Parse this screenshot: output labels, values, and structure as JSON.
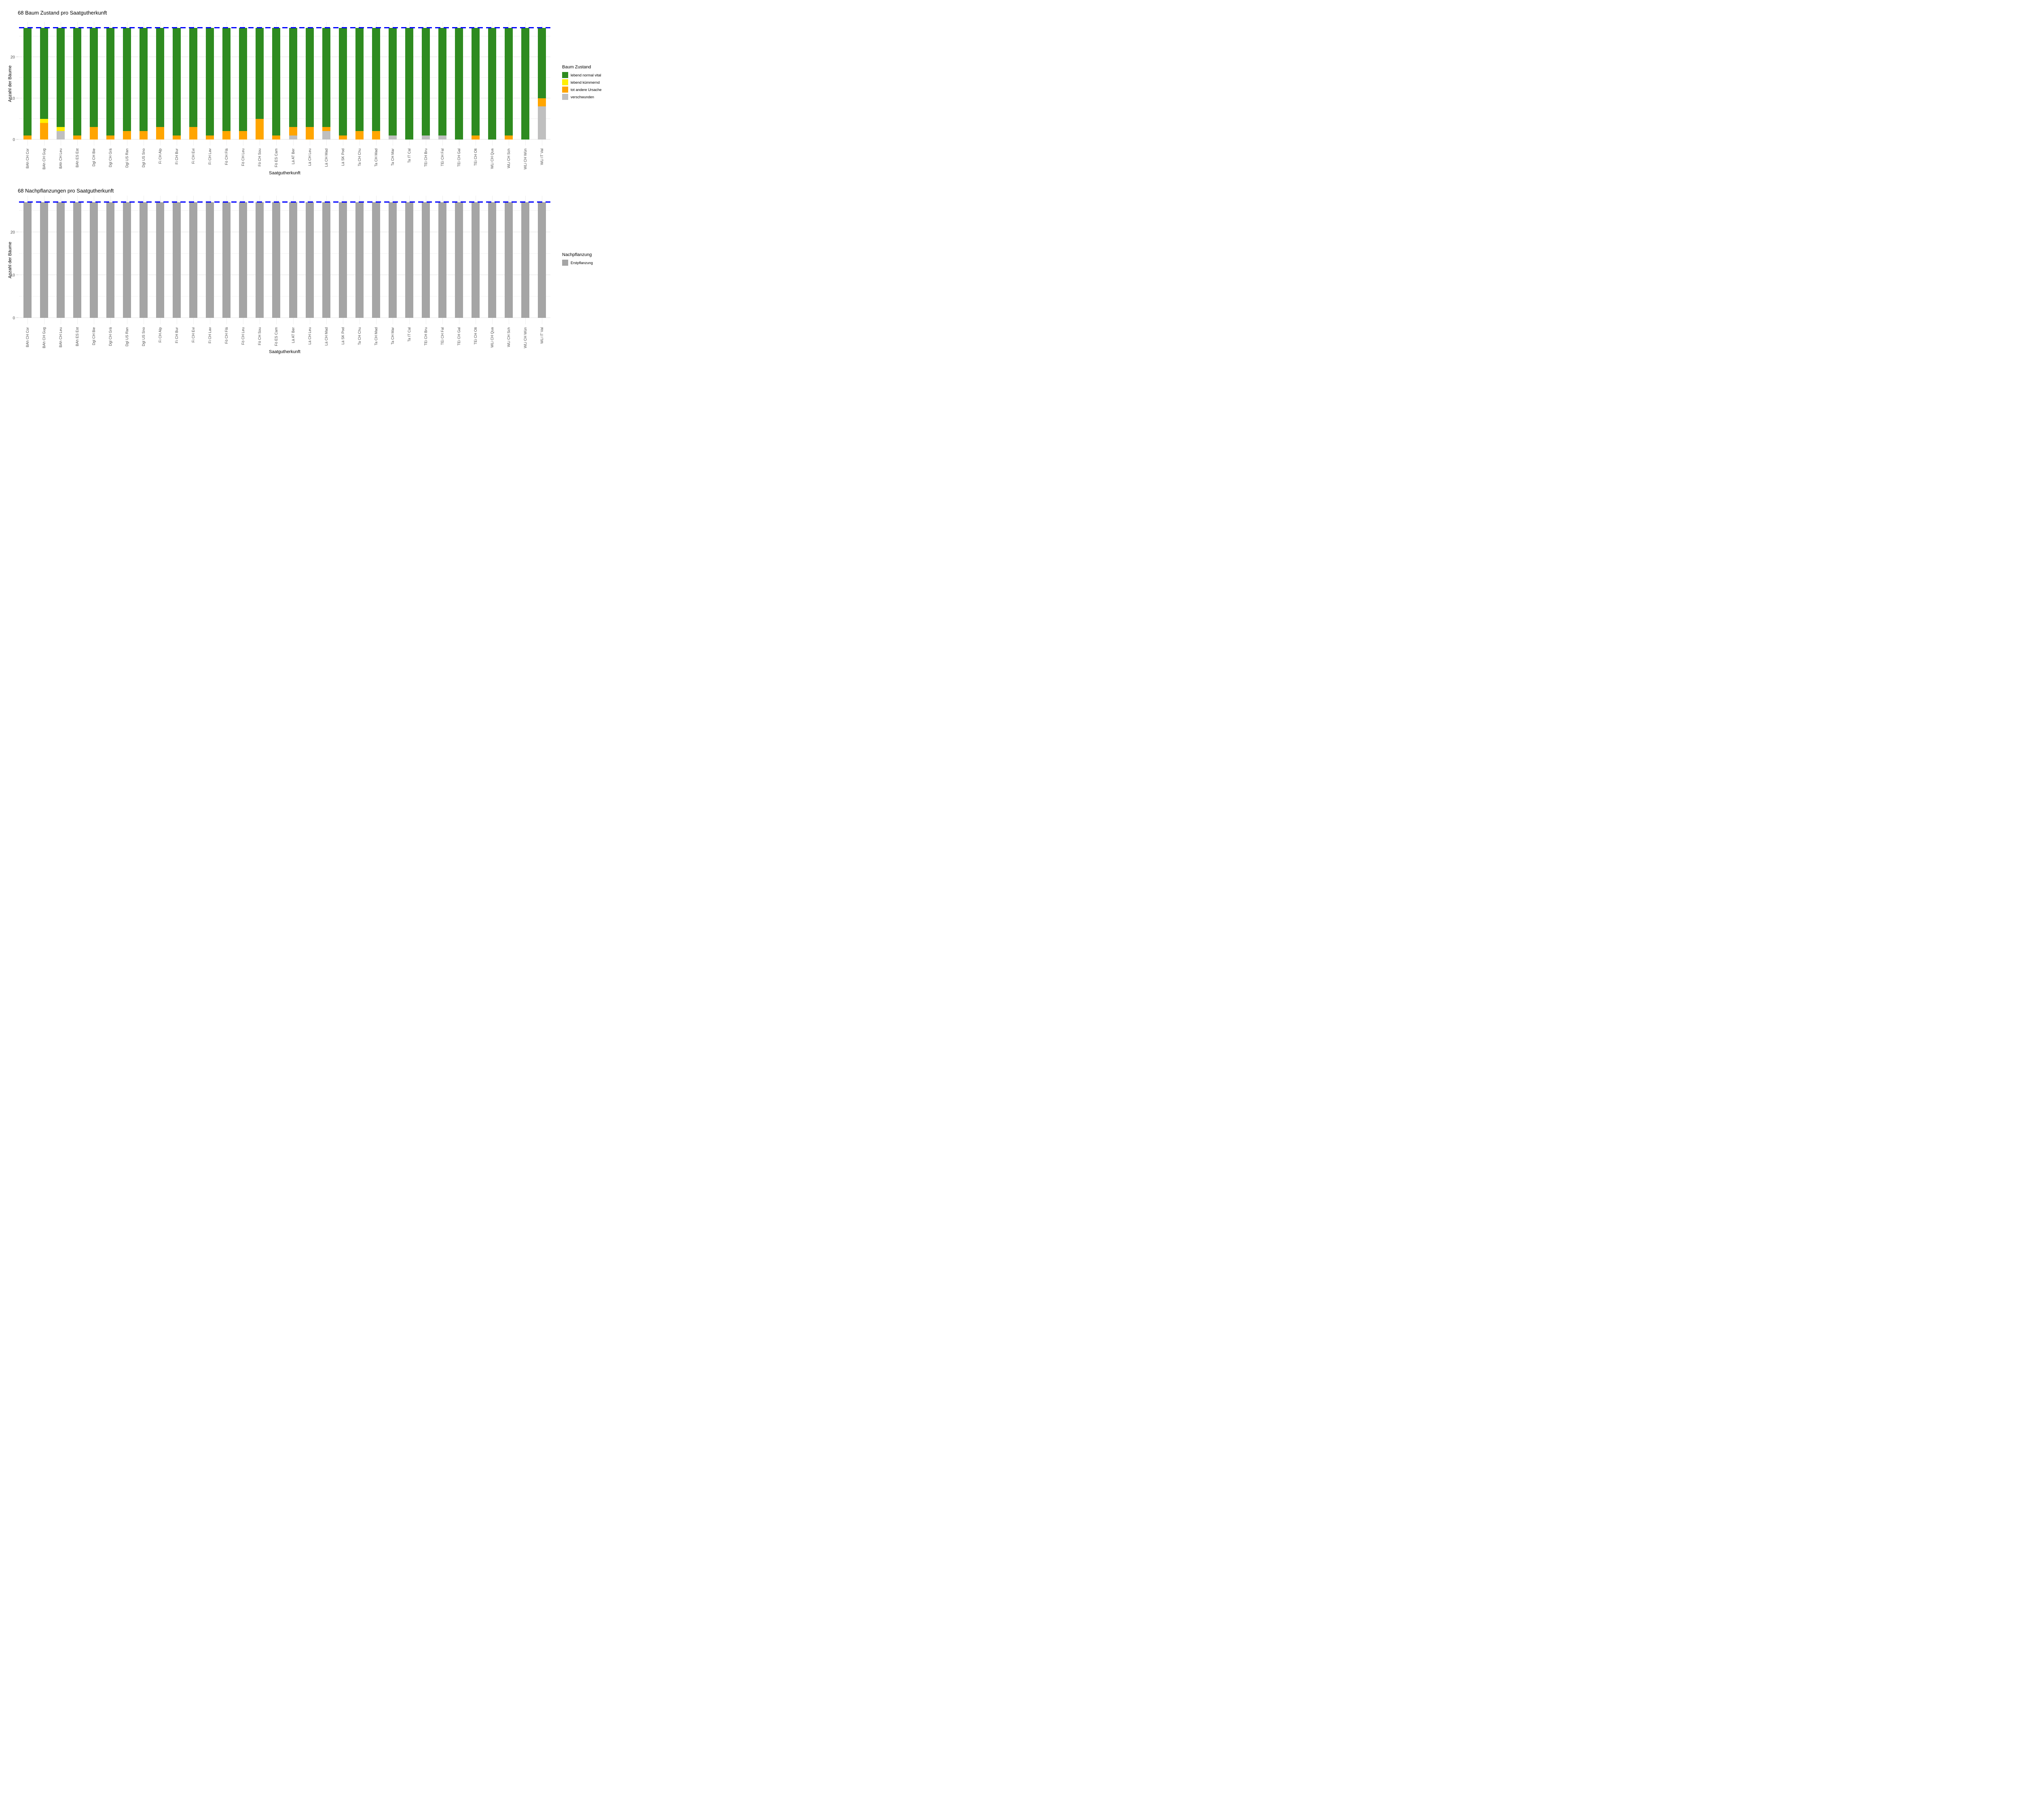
{
  "page": {
    "background": "#ffffff"
  },
  "chart_data": [
    {
      "id": "baum-zustand",
      "type": "bar",
      "stacked": true,
      "title": "68 Baum Zustand pro Saatgutherkunft",
      "xlabel": "Saatgutherkunft",
      "ylabel": "Anzahl der Bäume",
      "legend_title": "Baum Zustand",
      "legend_position": "right",
      "grid": true,
      "ylim": [
        -1.5,
        28.5
      ],
      "yticks": [
        0,
        10,
        20
      ],
      "yticks_minor": [
        5,
        15,
        25
      ],
      "bar_total": 27,
      "reference_line": {
        "y": 27,
        "color": "#0000ff",
        "style": "dashed"
      },
      "categories": [
        "BAh CH Cor",
        "BAh CH Gug",
        "BAh CH Leu",
        "BAh ES Est",
        "Dgl CH Bie",
        "Dgl CH Grä",
        "Dgl US Ran",
        "Dgl US Sno",
        "Fi CH Alp",
        "Fi CH Bur",
        "Fi CH Evi",
        "Fi CH Lav",
        "Fö CH Flä",
        "Fö CH Leu",
        "Fö CH Sou",
        "Fö ES Cam",
        "Lä AT Ber",
        "Lä CH Leu",
        "Lä CH Mad",
        "Lä SK Pod",
        "Ta CH Chu",
        "Ta CH Mad",
        "Ta CH Mar",
        "Ta IT Cal",
        "TEi CH Bru",
        "TEi CH Fal",
        "TEi CH Gal",
        "TEi CH Olt",
        "WLi CH Qua",
        "WLi CH Sch",
        "WLi CH Wün",
        "WLi IT Val"
      ],
      "series": [
        {
          "name": "lebend normal vital",
          "color": "#2e8b20",
          "values": [
            26,
            22,
            24,
            26,
            24,
            26,
            25,
            25,
            24,
            26,
            24,
            26,
            25,
            25,
            22,
            26,
            24,
            24,
            24,
            26,
            25,
            25,
            26,
            27,
            26,
            26,
            27,
            26,
            27,
            26,
            27,
            17
          ]
        },
        {
          "name": "lebend kümmernd",
          "color": "#ffef00",
          "values": [
            0,
            1,
            1,
            0,
            0,
            0,
            0,
            0,
            0,
            0,
            0,
            0,
            0,
            0,
            0,
            0,
            0,
            0,
            0,
            0,
            0,
            0,
            0,
            0,
            0,
            0,
            0,
            0,
            0,
            0,
            0,
            0
          ]
        },
        {
          "name": "tot andere Ursache",
          "color": "#ffa500",
          "values": [
            1,
            4,
            0,
            1,
            3,
            1,
            2,
            2,
            3,
            1,
            3,
            1,
            2,
            2,
            5,
            1,
            2,
            3,
            1,
            1,
            2,
            2,
            0,
            0,
            0,
            0,
            0,
            1,
            0,
            1,
            0,
            2
          ]
        },
        {
          "name": "verschwunden",
          "color": "#bfbfbf",
          "values": [
            0,
            0,
            2,
            0,
            0,
            0,
            0,
            0,
            0,
            0,
            0,
            0,
            0,
            0,
            0,
            0,
            1,
            0,
            2,
            0,
            0,
            0,
            1,
            0,
            1,
            1,
            0,
            0,
            0,
            0,
            0,
            8
          ]
        }
      ]
    },
    {
      "id": "nachpflanzungen",
      "type": "bar",
      "stacked": true,
      "title": "68 Nachpflanzungen pro Saatgutherkunft",
      "xlabel": "Saatgutherkunft",
      "ylabel": "Anzahl der Bäume",
      "legend_title": "Nachpflanzung",
      "legend_position": "right",
      "grid": true,
      "ylim": [
        -1.5,
        28.5
      ],
      "yticks": [
        0,
        10,
        20
      ],
      "yticks_minor": [
        5,
        15,
        25
      ],
      "bar_total": 27,
      "reference_line": {
        "y": 27,
        "color": "#0000ff",
        "style": "dashed"
      },
      "categories": [
        "BAh CH Cor",
        "BAh CH Gug",
        "BAh CH Leu",
        "BAh ES Est",
        "Dgl CH Bie",
        "Dgl CH Grä",
        "Dgl US Ran",
        "Dgl US Sno",
        "Fi CH Alp",
        "Fi CH Bur",
        "Fi CH Evi",
        "Fi CH Lav",
        "Fö CH Flä",
        "Fö CH Leu",
        "Fö CH Sou",
        "Fö ES Cam",
        "Lä AT Ber",
        "Lä CH Leu",
        "Lä CH Mad",
        "Lä SK Pod",
        "Ta CH Chu",
        "Ta CH Mad",
        "Ta CH Mar",
        "Ta IT Cal",
        "TEi CH Bru",
        "TEi CH Fal",
        "TEi CH Gal",
        "TEi CH Olt",
        "WLi CH Qua",
        "WLi CH Sch",
        "WLi CH Wün",
        "WLi IT Val"
      ],
      "series": [
        {
          "name": "Erstpflanzung",
          "color": "#a5a5a5",
          "values": [
            27,
            27,
            27,
            27,
            27,
            27,
            27,
            27,
            27,
            27,
            27,
            27,
            27,
            27,
            27,
            27,
            27,
            27,
            27,
            27,
            27,
            27,
            27,
            27,
            27,
            27,
            27,
            27,
            27,
            27,
            27,
            27
          ]
        }
      ]
    }
  ]
}
